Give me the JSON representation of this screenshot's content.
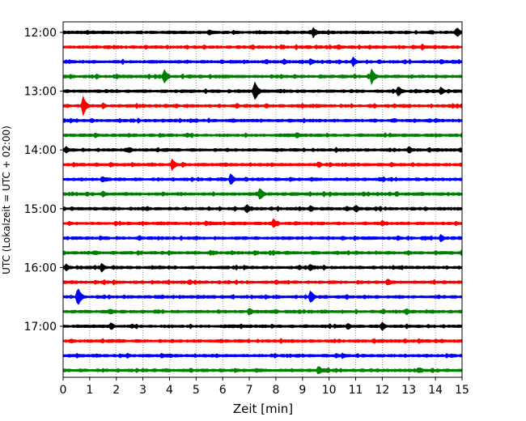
{
  "chart_data": {
    "type": "line",
    "xlabel": "Zeit  [min]",
    "ylabel": "UTC (Lokalzeit = UTC + 02:00)",
    "xlim": [
      0,
      15
    ],
    "x_ticks": [
      0,
      1,
      2,
      3,
      4,
      5,
      6,
      7,
      8,
      9,
      10,
      11,
      12,
      13,
      14,
      15
    ],
    "x_tick_labels": [
      "0",
      "1",
      "2",
      "3",
      "4",
      "5",
      "6",
      "7",
      "8",
      "9",
      "10",
      "11",
      "12",
      "13",
      "14",
      "15"
    ],
    "x_grid": true,
    "y_tick_labels": [
      "12:00",
      "13:00",
      "14:00",
      "15:00",
      "16:00",
      "17:00"
    ],
    "y_tick_times": [
      "12:00",
      "13:00",
      "14:00",
      "15:00",
      "16:00",
      "17:00"
    ],
    "trace_interval_min": 15,
    "color_cycle": [
      "#000000",
      "#ff0000",
      "#0000ff",
      "#008000"
    ],
    "traces": [
      {
        "start": "12:00",
        "events": [
          {
            "t": 9.4,
            "amp": 0.55
          },
          {
            "t": 14.8,
            "amp": 0.6
          },
          {
            "t": 5.5,
            "amp": 0.35
          }
        ]
      },
      {
        "start": "12:15",
        "events": [
          {
            "t": 8.2,
            "amp": 0.3
          },
          {
            "t": 13.5,
            "amp": 0.35
          }
        ]
      },
      {
        "start": "12:30",
        "events": [
          {
            "t": 10.9,
            "amp": 0.55
          },
          {
            "t": 9.3,
            "amp": 0.4
          },
          {
            "t": 8.3,
            "amp": 0.35
          }
        ]
      },
      {
        "start": "12:45",
        "events": [
          {
            "t": 3.8,
            "amp": 0.8
          },
          {
            "t": 11.6,
            "amp": 0.85
          },
          {
            "t": 2.0,
            "amp": 0.3
          }
        ]
      },
      {
        "start": "13:00",
        "events": [
          {
            "t": 7.2,
            "amp": 1.1
          },
          {
            "t": 12.6,
            "amp": 0.6
          },
          {
            "t": 14.2,
            "amp": 0.5
          }
        ]
      },
      {
        "start": "13:15",
        "events": [
          {
            "t": 0.75,
            "amp": 1.05
          },
          {
            "t": 1.5,
            "amp": 0.35
          }
        ]
      },
      {
        "start": "13:30",
        "events": [
          {
            "t": 14.0,
            "amp": 0.3
          },
          {
            "t": 5.0,
            "amp": 0.25
          }
        ]
      },
      {
        "start": "13:45",
        "events": [
          {
            "t": 8.8,
            "amp": 0.35
          },
          {
            "t": 1.2,
            "amp": 0.3
          }
        ]
      },
      {
        "start": "14:00",
        "events": [
          {
            "t": 0.1,
            "amp": 0.45
          },
          {
            "t": 13.0,
            "amp": 0.45
          },
          {
            "t": 2.5,
            "amp": 0.35
          }
        ]
      },
      {
        "start": "14:15",
        "events": [
          {
            "t": 4.1,
            "amp": 0.65
          },
          {
            "t": 9.6,
            "amp": 0.4
          },
          {
            "t": 1.8,
            "amp": 0.3
          }
        ]
      },
      {
        "start": "14:30",
        "events": [
          {
            "t": 6.3,
            "amp": 0.7
          },
          {
            "t": 1.5,
            "amp": 0.3
          }
        ]
      },
      {
        "start": "14:45",
        "events": [
          {
            "t": 7.4,
            "amp": 0.75
          },
          {
            "t": 1.5,
            "amp": 0.35
          }
        ]
      },
      {
        "start": "15:00",
        "events": [
          {
            "t": 6.9,
            "amp": 0.55
          },
          {
            "t": 11.0,
            "amp": 0.45
          },
          {
            "t": 9.3,
            "amp": 0.4
          }
        ]
      },
      {
        "start": "15:15",
        "events": [
          {
            "t": 7.9,
            "amp": 0.55
          },
          {
            "t": 12.0,
            "amp": 0.35
          }
        ]
      },
      {
        "start": "15:30",
        "events": [
          {
            "t": 14.2,
            "amp": 0.45
          },
          {
            "t": 1.4,
            "amp": 0.3
          }
        ]
      },
      {
        "start": "15:45",
        "events": [
          {
            "t": 15.0,
            "amp": 0.4
          },
          {
            "t": 7.2,
            "amp": 0.3
          }
        ]
      },
      {
        "start": "16:00",
        "events": [
          {
            "t": 0.1,
            "amp": 0.45
          },
          {
            "t": 1.45,
            "amp": 0.5
          },
          {
            "t": 9.3,
            "amp": 0.4
          }
        ]
      },
      {
        "start": "16:15",
        "events": [
          {
            "t": 12.2,
            "amp": 0.45
          },
          {
            "t": 8.0,
            "amp": 0.3
          }
        ]
      },
      {
        "start": "16:30",
        "events": [
          {
            "t": 0.55,
            "amp": 1.1
          },
          {
            "t": 9.3,
            "amp": 0.75
          }
        ]
      },
      {
        "start": "16:45",
        "events": [
          {
            "t": 7.0,
            "amp": 0.45
          },
          {
            "t": 12.9,
            "amp": 0.4
          },
          {
            "t": 1.8,
            "amp": 0.3
          }
        ]
      },
      {
        "start": "17:00",
        "events": [
          {
            "t": 1.8,
            "amp": 0.45
          },
          {
            "t": 12.0,
            "amp": 0.45
          },
          {
            "t": 10.7,
            "amp": 0.4
          }
        ]
      },
      {
        "start": "17:15",
        "events": [
          {
            "t": 2.1,
            "amp": 0.25
          },
          {
            "t": 14.0,
            "amp": 0.25
          }
        ]
      },
      {
        "start": "17:30",
        "events": [
          {
            "t": 3.7,
            "amp": 0.3
          },
          {
            "t": 10.5,
            "amp": 0.3
          }
        ]
      },
      {
        "start": "17:45",
        "events": [
          {
            "t": 9.6,
            "amp": 0.55
          },
          {
            "t": 13.4,
            "amp": 0.35
          }
        ]
      }
    ]
  }
}
